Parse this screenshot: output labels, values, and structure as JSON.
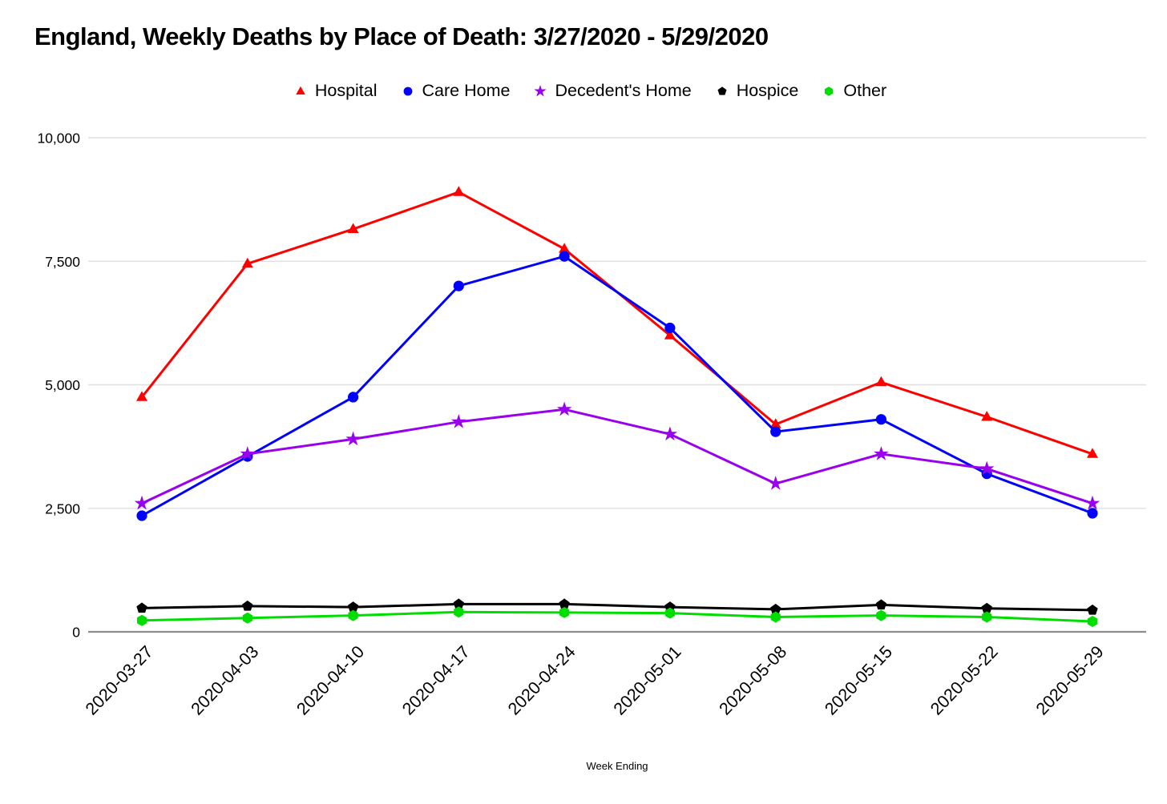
{
  "title": "England, Weekly Deaths by Place of Death: 3/27/2020 - 5/29/2020",
  "chart_data": {
    "type": "line",
    "title": "England, Weekly Deaths by Place of Death: 3/27/2020 - 5/29/2020",
    "xlabel": "Week Ending",
    "ylabel": "",
    "ylim": [
      0,
      10000
    ],
    "y_ticks": [
      0,
      2500,
      5000,
      7500,
      10000
    ],
    "y_tick_labels": [
      "0",
      "2,500",
      "5,000",
      "7,500",
      "10,000"
    ],
    "grid": true,
    "legend_position": "top-center",
    "categories": [
      "2020-03-27",
      "2020-04-03",
      "2020-04-10",
      "2020-04-17",
      "2020-04-24",
      "2020-05-01",
      "2020-05-08",
      "2020-05-15",
      "2020-05-22",
      "2020-05-29"
    ],
    "series": [
      {
        "name": "Hospital",
        "color": "#FF0000",
        "marker": "triangle-up",
        "values": [
          4750,
          7450,
          8150,
          8900,
          7750,
          6000,
          4200,
          5050,
          4350,
          3600
        ]
      },
      {
        "name": "Care Home",
        "color": "#0000FF",
        "marker": "circle",
        "values": [
          2350,
          3550,
          4750,
          7000,
          7600,
          6150,
          4050,
          4300,
          3200,
          2400
        ]
      },
      {
        "name": "Decedent's Home",
        "color": "#9900EE",
        "marker": "star",
        "values": [
          2600,
          3600,
          3900,
          4250,
          4500,
          4000,
          3000,
          3600,
          3300,
          2600
        ]
      },
      {
        "name": "Hospice",
        "color": "#000000",
        "marker": "pentagon",
        "values": [
          480,
          520,
          500,
          560,
          560,
          500,
          455,
          545,
          475,
          440
        ]
      },
      {
        "name": "Other",
        "color": "#00DD00",
        "marker": "hexagon",
        "values": [
          230,
          280,
          330,
          400,
          390,
          380,
          300,
          330,
          300,
          210
        ]
      }
    ],
    "gridline_color": "#E0E0E0",
    "zero_line_color": "#8C8C8C"
  }
}
